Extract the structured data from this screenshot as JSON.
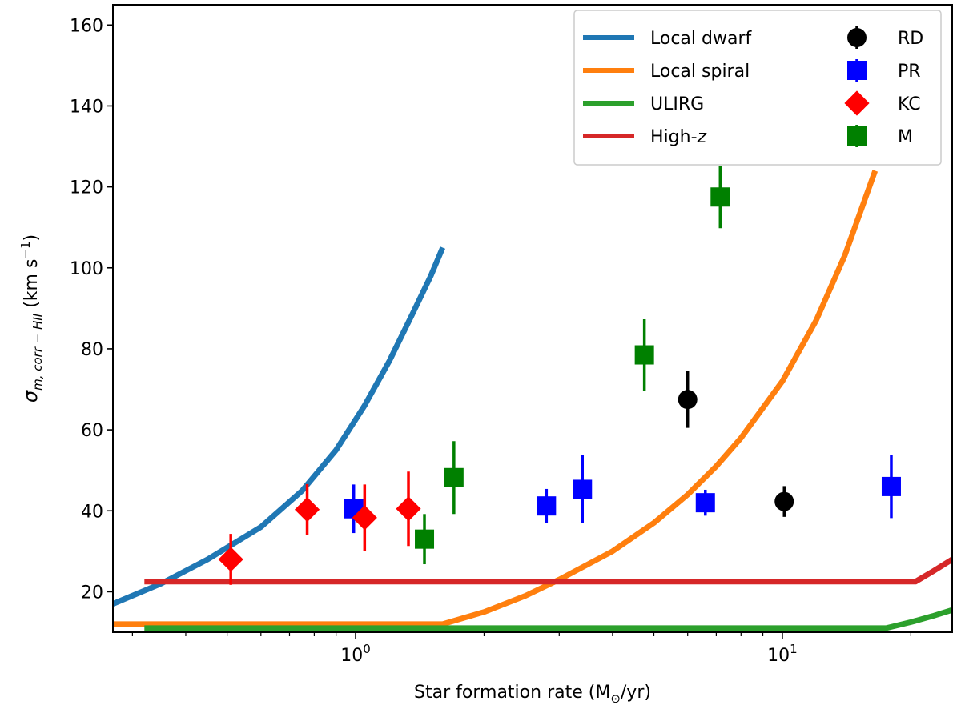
{
  "chart_data": {
    "type": "line+errorbar-scatter",
    "xscale": "log",
    "xlim": [
      0.27,
      25
    ],
    "ylim": [
      10,
      165
    ],
    "xlabel_prefix": "Star formation rate (M",
    "xlabel_sub": "⊙",
    "xlabel_suffix": "/yr)",
    "ylabel_sigma": "σ",
    "ylabel_sub": "m, corr − HII",
    "ylabel_units_a": " (km s",
    "ylabel_units_sup": "−1",
    "ylabel_units_b": ")",
    "y_ticks": [
      "20",
      "40",
      "60",
      "80",
      "100",
      "120",
      "140",
      "160"
    ],
    "x_major_ticks": [
      {
        "value": 1,
        "base": "10",
        "exp": "0"
      },
      {
        "value": 10,
        "base": "10",
        "exp": "1"
      }
    ],
    "x_minor_ticks": [
      0.3,
      0.4,
      0.5,
      0.6,
      0.7,
      0.8,
      0.9,
      2,
      3,
      4,
      5,
      6,
      7,
      8,
      9,
      20
    ],
    "lines": [
      {
        "name": "Local dwarf",
        "color": "#1f77b4",
        "x": [
          0.27,
          0.35,
          0.45,
          0.6,
          0.75,
          0.9,
          1.05,
          1.2,
          1.35,
          1.5,
          1.6
        ],
        "y": [
          17,
          22,
          28,
          36,
          45,
          55,
          66,
          77,
          88,
          98,
          105
        ]
      },
      {
        "name": "Local spiral",
        "color": "#ff7f0e",
        "x": [
          0.27,
          1.6,
          2.0,
          2.5,
          3.0,
          4.0,
          5.0,
          6.0,
          7.0,
          8.0,
          10,
          12,
          14,
          16.5
        ],
        "y": [
          12,
          12,
          15,
          19,
          23,
          30,
          37,
          44,
          51,
          58,
          72,
          87,
          103,
          124
        ]
      },
      {
        "name": "ULIRG",
        "color": "#2ca02c",
        "x": [
          0.32,
          17.5,
          20,
          22.5,
          25
        ],
        "y": [
          11,
          11,
          12.5,
          14,
          15.5
        ]
      },
      {
        "name": "High-z",
        "color": "#d62728",
        "x": [
          0.32,
          20.5,
          22.5,
          25
        ],
        "y": [
          22.5,
          22.5,
          25,
          28
        ]
      }
    ],
    "point_series": [
      {
        "name": "RD",
        "color": "#000000",
        "marker": "circle",
        "points": [
          {
            "x": 6.0,
            "y": 67.5,
            "err": 7
          },
          {
            "x": 10.1,
            "y": 42.3,
            "err": 3.8
          }
        ]
      },
      {
        "name": "PR",
        "color": "#0000ff",
        "marker": "square",
        "points": [
          {
            "x": 0.99,
            "y": 40.5,
            "err": 6
          },
          {
            "x": 2.8,
            "y": 41.2,
            "err": 4.2
          },
          {
            "x": 3.4,
            "y": 45.3,
            "err": 8.4
          },
          {
            "x": 6.6,
            "y": 42.0,
            "err": 3.2
          },
          {
            "x": 18.0,
            "y": 46.0,
            "err": 7.8
          }
        ]
      },
      {
        "name": "KC",
        "color": "#ff0000",
        "marker": "diamond",
        "points": [
          {
            "x": 0.51,
            "y": 28.0,
            "err": 6.3
          },
          {
            "x": 0.77,
            "y": 40.3,
            "err": 6.3
          },
          {
            "x": 1.05,
            "y": 38.3,
            "err": 8.2
          },
          {
            "x": 1.33,
            "y": 40.5,
            "err": 9.2
          }
        ]
      },
      {
        "name": "M",
        "color": "#008000",
        "marker": "square",
        "points": [
          {
            "x": 1.45,
            "y": 33.0,
            "err": 6.2
          },
          {
            "x": 1.7,
            "y": 48.2,
            "err": 9
          },
          {
            "x": 4.75,
            "y": 78.5,
            "err": 8.8
          },
          {
            "x": 7.15,
            "y": 117.5,
            "err": 7.7
          }
        ]
      }
    ],
    "legend": {
      "placement": "top-right",
      "col1": [
        {
          "label": "Local dwarf",
          "color": "#1f77b4"
        },
        {
          "label": "Local spiral",
          "color": "#ff7f0e"
        },
        {
          "label": "ULIRG",
          "color": "#2ca02c"
        },
        {
          "label": "High-",
          "label_italic": "z",
          "color": "#d62728"
        }
      ],
      "col2": [
        {
          "label": "RD",
          "color": "#000000",
          "marker": "circle"
        },
        {
          "label": "PR",
          "color": "#0000ff",
          "marker": "square"
        },
        {
          "label": "KC",
          "color": "#ff0000",
          "marker": "diamond"
        },
        {
          "label": "M",
          "color": "#008000",
          "marker": "square"
        }
      ]
    }
  }
}
